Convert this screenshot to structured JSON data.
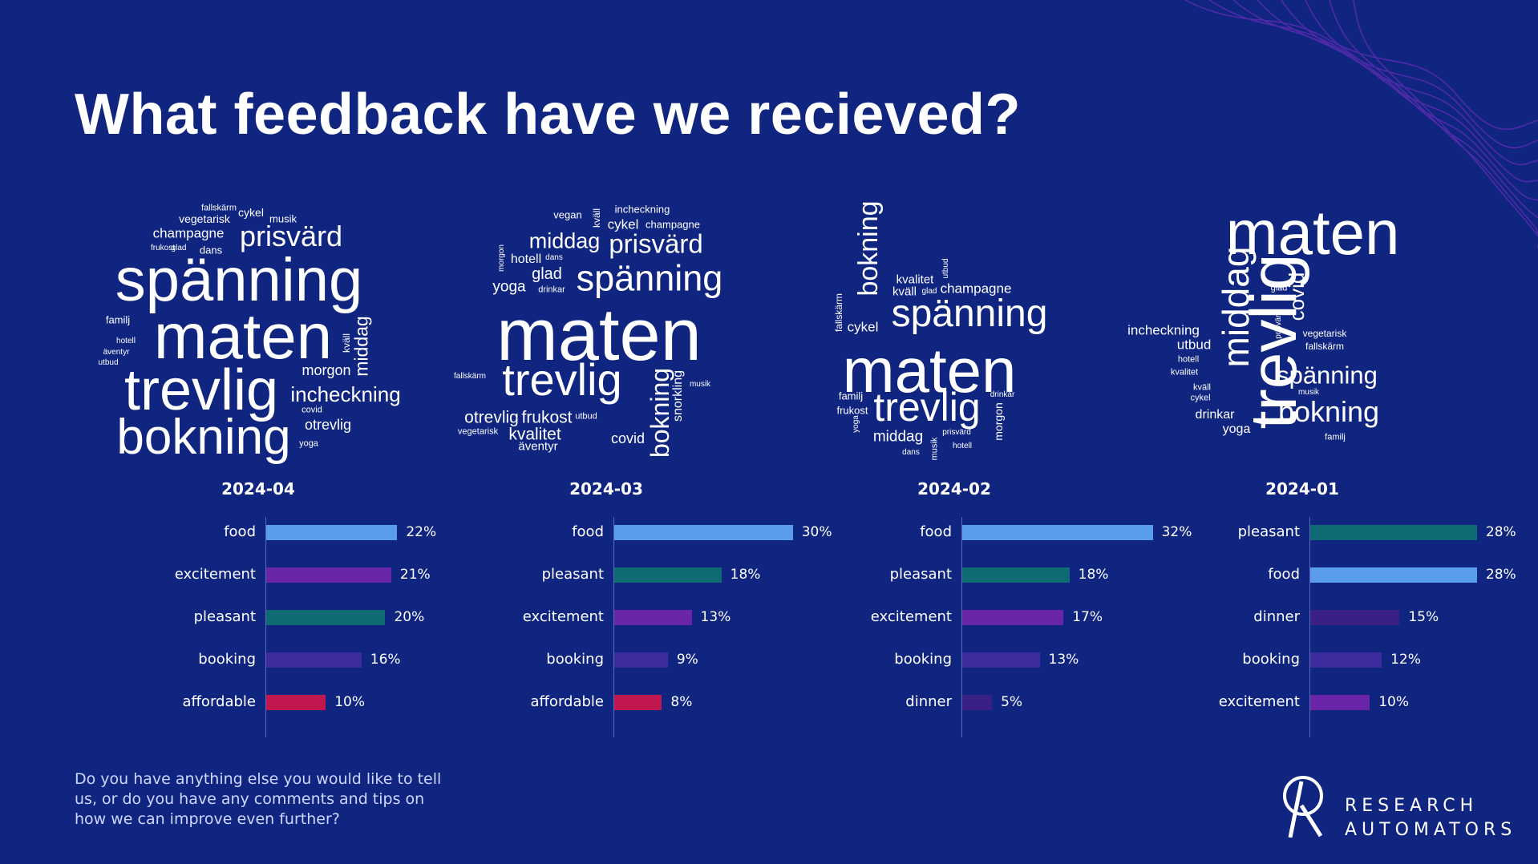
{
  "title": "What feedback have we recieved?",
  "footer": "Do you have anything else you would like to tell us, or do you have any comments and tips on how we can improve even further?",
  "brand": {
    "line1": "RESEARCH",
    "line2": "AUTOMATORS"
  },
  "colors": {
    "background": "#0f2580",
    "food": "#5b9ded",
    "excitement": "#6a25a8",
    "pleasant": "#0e6b74",
    "booking": "#3d2c9e",
    "affordable": "#c0174f",
    "dinner": "#3a2085"
  },
  "word_clouds": [
    {
      "period": "2024-04",
      "words": [
        "fallskärm",
        "cykel",
        "vegetarisk",
        "musik",
        "champagne",
        "prisvärd",
        "frukost",
        "glad",
        "dans",
        "spänning",
        "familj",
        "maten",
        "kväll",
        "middag",
        "hotell",
        "äventyr",
        "utbud",
        "morgon",
        "trevlig",
        "incheckning",
        "covid",
        "otrevlig",
        "bokning",
        "yoga"
      ]
    },
    {
      "period": "2024-03",
      "words": [
        "vegan",
        "kväll",
        "incheckning",
        "cykel",
        "champagne",
        "middag",
        "prisvärd",
        "morgon",
        "hotell",
        "dans",
        "glad",
        "yoga",
        "drinkar",
        "spänning",
        "maten",
        "fallskärm",
        "trevlig",
        "snorkling",
        "musik",
        "otrevlig",
        "frukost",
        "utbud",
        "bokning",
        "vegetarisk",
        "kvalitet",
        "covid",
        "äventyr"
      ]
    },
    {
      "period": "2024-02",
      "words": [
        "bokning",
        "utbud",
        "kvalitet",
        "kväll",
        "glad",
        "champagne",
        "fallskärm",
        "cykel",
        "spänning",
        "maten",
        "familj",
        "drinkar",
        "frukost",
        "trevlig",
        "yoga",
        "middag",
        "prisvärd",
        "morgon",
        "dans",
        "musik",
        "hotell"
      ]
    },
    {
      "period": "2024-01",
      "words": [
        "maten",
        "glad",
        "middag",
        "covid",
        "trevlig",
        "incheckning",
        "prisvärd",
        "vegetarisk",
        "utbud",
        "fallskärm",
        "hotell",
        "kvalitet",
        "spänning",
        "kväll",
        "musik",
        "cykel",
        "drinkar",
        "bokning",
        "yoga",
        "familj"
      ]
    }
  ],
  "chart_data": [
    {
      "type": "bar",
      "title": "2024-04",
      "categories": [
        "food",
        "excitement",
        "pleasant",
        "booking",
        "affordable"
      ],
      "values": [
        22,
        21,
        20,
        16,
        10
      ],
      "value_labels": [
        "22%",
        "21%",
        "20%",
        "16%",
        "10%"
      ],
      "xlim": [
        0,
        33
      ]
    },
    {
      "type": "bar",
      "title": "2024-03",
      "categories": [
        "food",
        "pleasant",
        "excitement",
        "booking",
        "affordable"
      ],
      "values": [
        30,
        18,
        13,
        9,
        8
      ],
      "value_labels": [
        "30%",
        "18%",
        "13%",
        "9%",
        "8%"
      ],
      "xlim": [
        0,
        33
      ]
    },
    {
      "type": "bar",
      "title": "2024-02",
      "categories": [
        "food",
        "pleasant",
        "excitement",
        "booking",
        "dinner"
      ],
      "values": [
        32,
        18,
        17,
        13,
        5
      ],
      "value_labels": [
        "32%",
        "18%",
        "17%",
        "13%",
        "5%"
      ],
      "xlim": [
        0,
        33
      ]
    },
    {
      "type": "bar",
      "title": "2024-01",
      "categories": [
        "pleasant",
        "food",
        "dinner",
        "booking",
        "excitement"
      ],
      "values": [
        28,
        28,
        15,
        12,
        10
      ],
      "value_labels": [
        "28%",
        "28%",
        "15%",
        "12%",
        "10%"
      ],
      "xlim": [
        0,
        33
      ]
    }
  ]
}
